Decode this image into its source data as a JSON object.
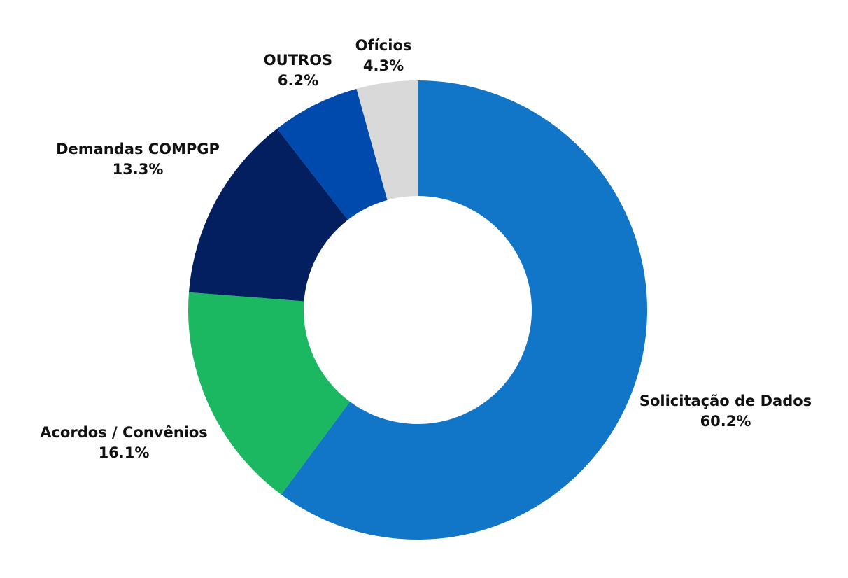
{
  "chart_data": {
    "type": "pie",
    "donut": true,
    "slices": [
      {
        "label": "Solicitação de Dados",
        "value": 60.2,
        "display": "60.2%",
        "color": "#1175C8"
      },
      {
        "label": "Acordos / Convênios",
        "value": 16.1,
        "display": "16.1%",
        "color": "#1CB861"
      },
      {
        "label": "Demandas COMPGP",
        "value": 13.3,
        "display": "13.3%",
        "color": "#031F60"
      },
      {
        "label": "OUTROS",
        "value": 6.2,
        "display": "6.2%",
        "color": "#004AAD"
      },
      {
        "label": "Ofícios",
        "value": 4.3,
        "display": "4.3%",
        "color": "#D9D9D9"
      }
    ]
  }
}
